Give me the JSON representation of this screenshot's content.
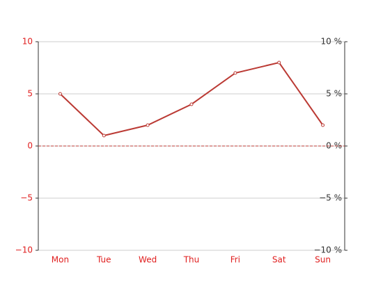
{
  "chart_data": {
    "type": "line",
    "categories": [
      "Mon",
      "Tue",
      "Wed",
      "Thu",
      "Fri",
      "Sat",
      "Sun"
    ],
    "series": [
      {
        "color": "#bb3a34",
        "values": [
          5,
          1,
          2,
          4,
          7,
          8,
          2
        ]
      }
    ],
    "ylim": [
      -10,
      10
    ],
    "yticks": [
      10,
      5,
      0,
      {
        "value": -5,
        "label": "−5"
      },
      {
        "value": -10,
        "label": "−10"
      }
    ],
    "y2lim": [
      -10,
      10
    ],
    "y2ticks": [
      {
        "value": 10,
        "label": "10 %"
      },
      {
        "value": 5,
        "label": "5 %"
      },
      {
        "value": 0,
        "label": "0 %"
      },
      {
        "value": -5,
        "label": "−5 %"
      },
      {
        "value": -10,
        "label": "−10 %"
      }
    ],
    "grid": true,
    "label_color": "#e01e1e",
    "x_axis_at": 0,
    "x_axis_dashed": true
  }
}
